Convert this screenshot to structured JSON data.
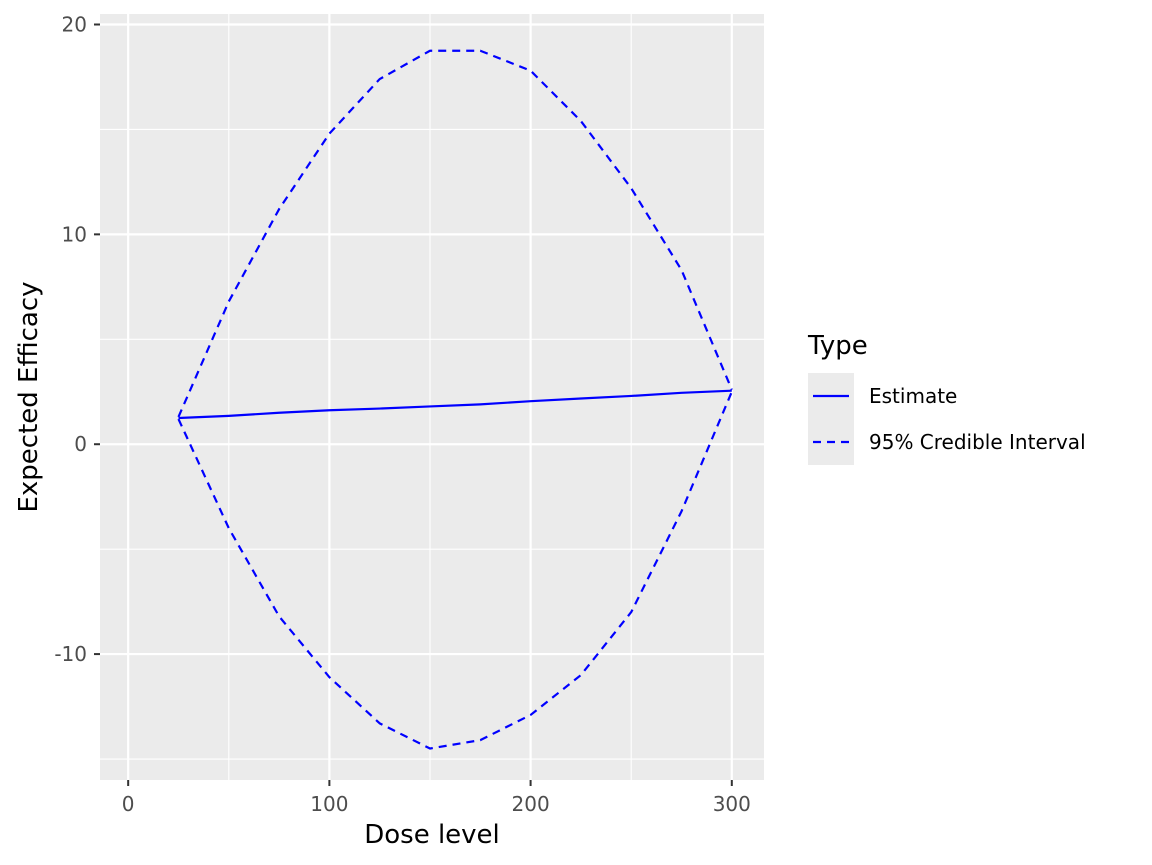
{
  "chart_data": {
    "type": "line",
    "xlabel": "Dose level",
    "ylabel": "Expected Efficacy",
    "xlim": [
      -14,
      316
    ],
    "ylim": [
      -16,
      20.5
    ],
    "x_ticks": [
      0,
      100,
      200,
      300
    ],
    "x_tick_labels": [
      "0",
      "100",
      "200",
      "300"
    ],
    "y_ticks": [
      -10,
      0,
      10,
      20
    ],
    "y_tick_labels": [
      "-10",
      "0",
      "10",
      "20"
    ],
    "grid": true,
    "background": "#ebebeb",
    "legend": {
      "title": "Type",
      "position": "right",
      "entries": [
        {
          "label": "Estimate",
          "linetype": "solid"
        },
        {
          "label": "95% Credible Interval",
          "linetype": "dashed"
        }
      ]
    },
    "line_color": "#0000ff",
    "series": [
      {
        "name": "Estimate",
        "linetype": "solid",
        "x": [
          25,
          50,
          75,
          100,
          125,
          150,
          175,
          200,
          225,
          250,
          275,
          300
        ],
        "y": [
          1.25,
          1.35,
          1.5,
          1.62,
          1.7,
          1.8,
          1.9,
          2.05,
          2.18,
          2.3,
          2.45,
          2.55
        ]
      },
      {
        "name": "95% Credible Interval",
        "linetype": "dashed",
        "x": [
          25,
          50,
          75,
          100,
          125,
          150,
          175,
          200,
          225,
          250,
          275,
          300
        ],
        "y": [
          1.3,
          6.8,
          11.2,
          14.8,
          17.4,
          18.75,
          18.75,
          17.8,
          15.4,
          12.2,
          8.3,
          2.6
        ]
      },
      {
        "name": "95% Credible Interval",
        "linetype": "dashed",
        "x": [
          25,
          50,
          75,
          100,
          125,
          150,
          175,
          200,
          225,
          250,
          275,
          300
        ],
        "y": [
          1.2,
          -4.0,
          -8.2,
          -11.1,
          -13.3,
          -14.5,
          -14.1,
          -12.9,
          -11.0,
          -8.0,
          -3.2,
          2.5
        ]
      }
    ]
  }
}
